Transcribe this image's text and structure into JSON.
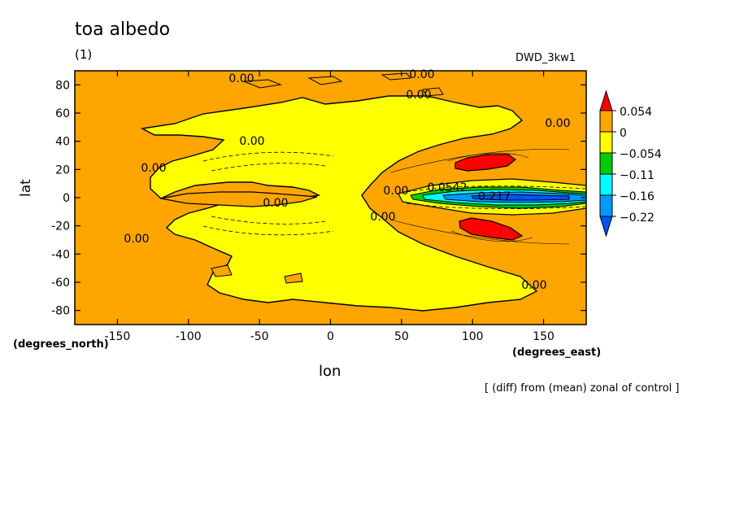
{
  "chart_data": {
    "type": "heatmap",
    "title": "toa albedo",
    "subtitle": "(1)",
    "model_label": "DWD_3kw1",
    "xlabel": "lon",
    "ylabel": "lat",
    "x_units": "(degrees_east)",
    "y_units": "(degrees_north)",
    "xlim": [
      -180,
      180
    ],
    "ylim": [
      -90,
      90
    ],
    "x_ticks": [
      -150,
      -100,
      -50,
      0,
      50,
      100,
      150
    ],
    "y_ticks": [
      80,
      60,
      40,
      20,
      0,
      -20,
      -40,
      -60,
      -80
    ],
    "note": "[ (diff) from (mean) zonal of control ]",
    "colorbar": {
      "labels": [
        "0.054",
        "0",
        "−0.054",
        "−0.11",
        "−0.16",
        "−0.22"
      ],
      "colors": [
        "#ff0000",
        "#ffa500",
        "#ffff00",
        "#00cc00",
        "#00ffff",
        "#0099ff",
        "#0055ff"
      ]
    },
    "contour_labels": [
      "0.00",
      "0.00",
      "0.00",
      "0.00",
      "0.00",
      "0.00",
      "0.00",
      "0.00",
      "0.00",
      "0.00",
      "0.00",
      "0.0542",
      "0.217"
    ]
  }
}
